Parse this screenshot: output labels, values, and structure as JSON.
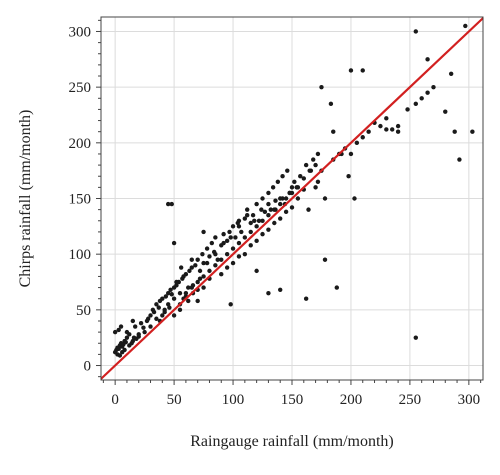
{
  "chart_data": {
    "type": "scatter",
    "title": "",
    "xlabel": "Raingauge rainfall (mm/month)",
    "ylabel": "Chirps rainfall (mm/month)",
    "xlim": [
      -12,
      312
    ],
    "ylim": [
      -13,
      313
    ],
    "xticks": [
      0,
      50,
      100,
      150,
      200,
      250,
      300
    ],
    "yticks": [
      0,
      50,
      100,
      150,
      200,
      250,
      300
    ],
    "grid": true,
    "legend": "none",
    "colors": {
      "points": "#1a1a1a",
      "line": "#d22020",
      "grid": "#dcdcdc",
      "axis": "#444444"
    },
    "reference_line": {
      "x": [
        -12,
        312
      ],
      "y": [
        -12,
        312
      ]
    },
    "points": {
      "x": [
        0,
        1,
        2,
        3,
        4,
        5,
        6,
        7,
        8,
        9,
        10,
        2,
        4,
        6,
        8,
        12,
        14,
        15,
        16,
        18,
        20,
        0,
        3,
        5,
        10,
        12,
        17,
        22,
        25,
        27,
        28,
        30,
        32,
        24,
        20,
        15,
        33,
        35,
        37,
        38,
        40,
        42,
        43,
        45,
        47,
        48,
        50,
        52,
        54,
        55,
        57,
        58,
        60,
        62,
        63,
        65,
        66,
        68,
        70,
        72,
        74,
        75,
        78,
        80,
        82,
        84,
        85,
        87,
        90,
        92,
        95,
        97,
        100,
        102,
        104,
        105,
        107,
        110,
        112,
        115,
        117,
        120,
        122,
        125,
        127,
        130,
        132,
        134,
        136,
        138,
        140,
        142,
        144,
        146,
        148,
        150,
        152,
        155,
        157,
        160,
        162,
        164,
        166,
        168,
        170,
        172,
        175,
        60,
        65,
        70,
        75,
        80,
        85,
        90,
        95,
        100,
        105,
        110,
        115,
        120,
        125,
        130,
        135,
        140,
        145,
        150,
        155,
        40,
        45,
        50,
        55,
        60,
        70,
        75,
        80,
        90,
        95,
        100,
        105,
        110,
        115,
        120,
        125,
        130,
        135,
        140,
        145,
        150,
        30,
        35,
        38,
        42,
        46,
        50,
        55,
        58,
        62,
        66,
        70,
        48,
        52,
        56,
        65,
        72,
        78,
        85,
        92,
        98,
        105,
        112,
        118,
        124,
        130,
        136,
        142,
        148,
        154,
        160,
        165,
        170,
        178,
        185,
        190,
        195,
        200,
        205,
        210,
        215,
        220,
        225,
        230,
        235,
        240,
        248,
        255,
        260,
        265,
        270,
        280,
        288,
        292,
        297,
        303,
        185,
        200,
        210,
        230,
        240,
        255,
        265,
        285,
        188,
        130,
        140,
        162,
        98,
        120,
        255,
        175,
        183,
        192,
        198,
        203,
        172,
        178,
        50,
        75,
        45
      ],
      "y": [
        12,
        14,
        16,
        15,
        18,
        20,
        17,
        19,
        22,
        21,
        25,
        10,
        9,
        12,
        14,
        18,
        20,
        22,
        25,
        24,
        28,
        30,
        32,
        35,
        30,
        28,
        35,
        38,
        30,
        40,
        42,
        45,
        50,
        34,
        26,
        40,
        48,
        55,
        52,
        58,
        60,
        50,
        62,
        65,
        68,
        64,
        70,
        72,
        75,
        65,
        78,
        80,
        82,
        70,
        85,
        88,
        72,
        90,
        95,
        85,
        100,
        92,
        105,
        98,
        110,
        102,
        115,
        95,
        108,
        118,
        112,
        120,
        125,
        115,
        128,
        130,
        120,
        132,
        140,
        128,
        135,
        145,
        130,
        150,
        138,
        155,
        140,
        160,
        148,
        165,
        150,
        170,
        145,
        175,
        155,
        160,
        165,
        150,
        170,
        158,
        180,
        140,
        175,
        185,
        160,
        190,
        175,
        62,
        70,
        75,
        80,
        85,
        90,
        95,
        100,
        105,
        110,
        115,
        120,
        125,
        130,
        135,
        140,
        145,
        150,
        155,
        160,
        45,
        55,
        60,
        50,
        65,
        58,
        70,
        78,
        82,
        88,
        92,
        98,
        100,
        108,
        112,
        118,
        122,
        128,
        132,
        138,
        142,
        35,
        42,
        40,
        48,
        52,
        45,
        55,
        60,
        58,
        65,
        68,
        145,
        75,
        88,
        95,
        78,
        92,
        100,
        110,
        115,
        125,
        135,
        130,
        140,
        145,
        140,
        150,
        155,
        160,
        168,
        175,
        180,
        150,
        185,
        190,
        195,
        190,
        200,
        205,
        210,
        218,
        215,
        222,
        212,
        210,
        230,
        235,
        240,
        245,
        250,
        228,
        210,
        185,
        305,
        210,
        210,
        265,
        265,
        212,
        215,
        300,
        275,
        262,
        70,
        65,
        68,
        60,
        55,
        85,
        25,
        250,
        235,
        190,
        170,
        150,
        165,
        95,
        110,
        120,
        145
      ],
      "color": "#1a1a1a"
    }
  }
}
